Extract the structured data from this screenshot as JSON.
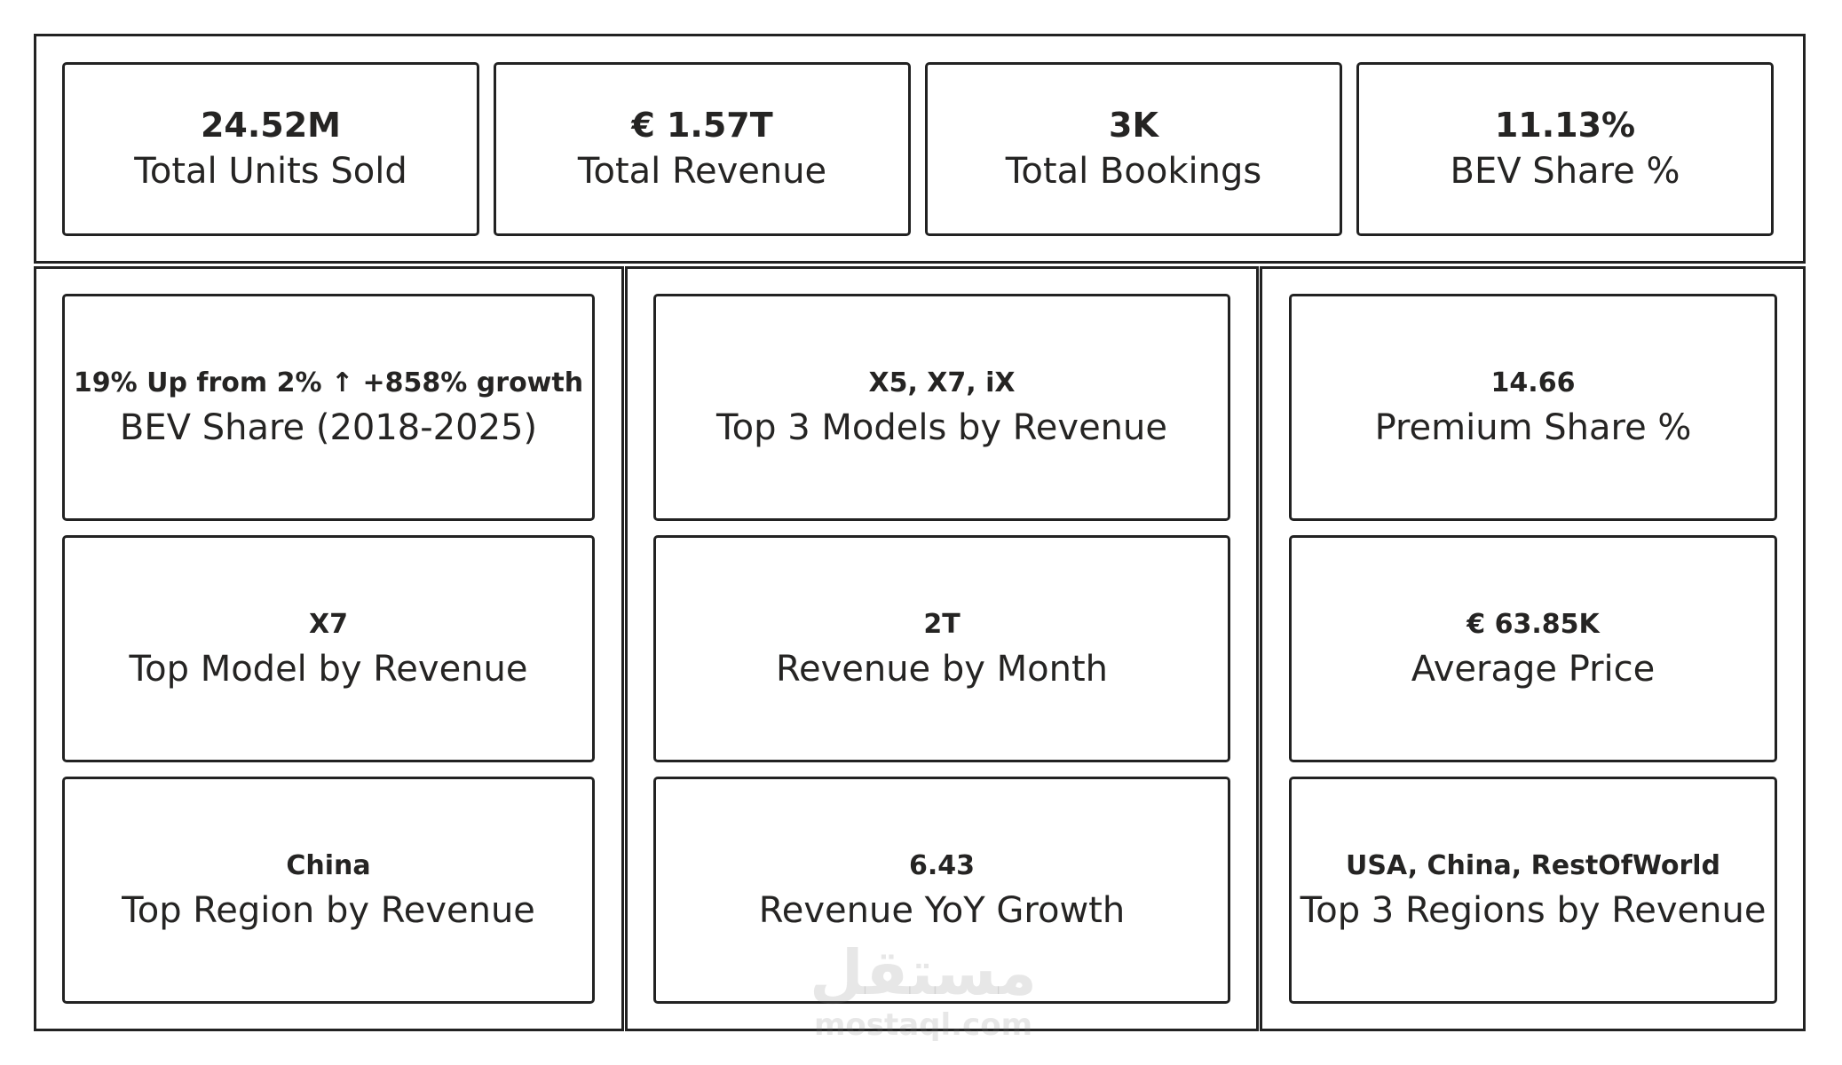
{
  "kpis": [
    {
      "value": "24.52M",
      "label": "Total Units Sold"
    },
    {
      "value": "€ 1.57T",
      "label": "Total Revenue"
    },
    {
      "value": "3K",
      "label": "Total Bookings"
    },
    {
      "value": "11.13%",
      "label": "BEV Share %"
    }
  ],
  "columns": [
    {
      "cards": [
        {
          "value": "19% Up from 2% ↑ +858% growth",
          "label": "BEV Share (2018-2025)"
        },
        {
          "value": "X7",
          "label": "Top Model by Revenue"
        },
        {
          "value": "China",
          "label": "Top Region by Revenue"
        }
      ]
    },
    {
      "cards": [
        {
          "value": "X5, X7, iX",
          "label": "Top 3 Models by Revenue"
        },
        {
          "value": "2T",
          "label": "Revenue by Month"
        },
        {
          "value": "6.43",
          "label": "Revenue YoY Growth"
        }
      ]
    },
    {
      "cards": [
        {
          "value": "14.66",
          "label": "Premium Share %"
        },
        {
          "value": "€ 63.85K",
          "label": "Average Price"
        },
        {
          "value": "USA, China, RestOfWorld",
          "label": "Top 3 Regions by Revenue"
        }
      ]
    }
  ],
  "watermark": {
    "arabic": "مستقل",
    "latin": "mostaql.com"
  }
}
